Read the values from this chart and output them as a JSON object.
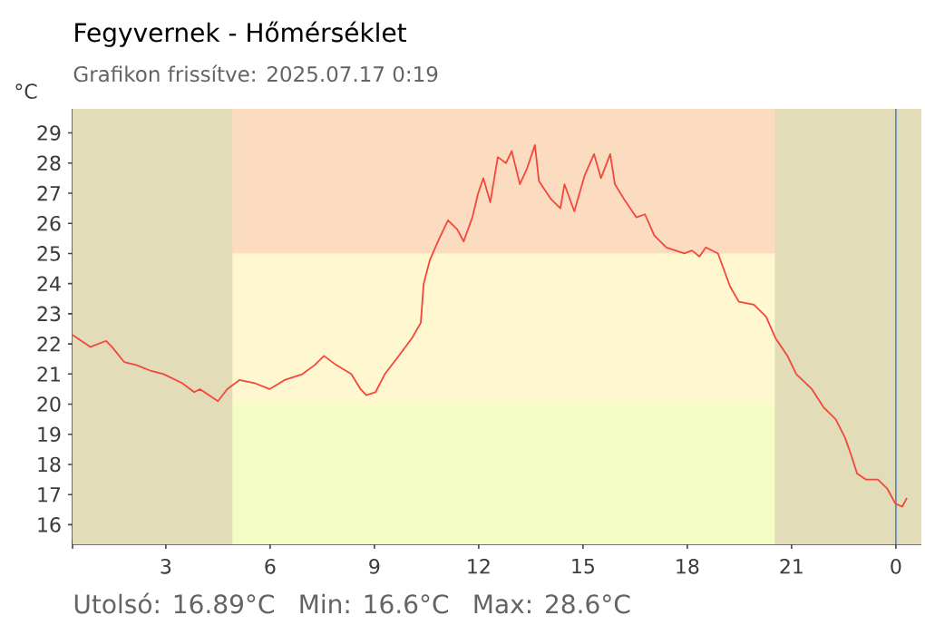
{
  "chart_data": {
    "type": "line",
    "title": "Fegyvernek - Hőmérséklet",
    "subtitle": "Grafikon frissítve: 2025.07.17 0:19",
    "ylabel": "°C",
    "annotations": [
      "Utolsó: 16.89°C",
      "Min: 16.6°C",
      "Max: 28.6°C"
    ],
    "x": [
      "2025-07-16T00:19",
      "2025-07-16T00:50",
      "2025-07-16T01:17",
      "2025-07-16T01:27",
      "2025-07-16T01:48",
      "2025-07-16T02:09",
      "2025-07-16T02:35",
      "2025-07-16T02:56",
      "2025-07-16T03:28",
      "2025-07-16T03:49",
      "2025-07-16T03:59",
      "2025-07-16T04:30",
      "2025-07-16T04:46",
      "2025-07-16T05:07",
      "2025-07-16T05:33",
      "2025-07-16T05:59",
      "2025-07-16T06:25",
      "2025-07-16T06:56",
      "2025-07-16T07:17",
      "2025-07-16T07:33",
      "2025-07-16T07:54",
      "2025-07-16T08:20",
      "2025-07-16T08:36",
      "2025-07-16T08:46",
      "2025-07-16T09:02",
      "2025-07-16T09:18",
      "2025-07-16T09:38",
      "2025-07-16T10:05",
      "2025-07-16T10:20",
      "2025-07-16T10:25",
      "2025-07-16T10:36",
      "2025-07-16T10:52",
      "2025-07-16T11:07",
      "2025-07-16T11:23",
      "2025-07-16T11:34",
      "2025-07-16T11:49",
      "2025-07-16T11:59",
      "2025-07-16T12:08",
      "2025-07-16T12:20",
      "2025-07-16T12:33",
      "2025-07-16T12:47",
      "2025-07-16T12:57",
      "2025-07-16T13:11",
      "2025-07-16T13:23",
      "2025-07-16T13:37",
      "2025-07-16T13:44",
      "2025-07-16T14:05",
      "2025-07-16T14:21",
      "2025-07-16T14:28",
      "2025-07-16T14:45",
      "2025-07-16T15:03",
      "2025-07-16T15:19",
      "2025-07-16T15:31",
      "2025-07-16T15:47",
      "2025-07-16T15:55",
      "2025-07-16T16:11",
      "2025-07-16T16:32",
      "2025-07-16T16:47",
      "2025-07-16T17:03",
      "2025-07-16T17:24",
      "2025-07-16T17:55",
      "2025-07-16T18:08",
      "2025-07-16T18:21",
      "2025-07-16T18:32",
      "2025-07-16T18:53",
      "2025-07-16T19:14",
      "2025-07-16T19:29",
      "2025-07-16T19:55",
      "2025-07-16T20:16",
      "2025-07-16T20:32",
      "2025-07-16T20:53",
      "2025-07-16T21:08",
      "2025-07-16T21:35",
      "2025-07-16T21:55",
      "2025-07-16T22:16",
      "2025-07-16T22:32",
      "2025-07-16T22:43",
      "2025-07-16T22:53",
      "2025-07-16T23:08",
      "2025-07-16T23:29",
      "2025-07-16T23:45",
      "2025-07-16T23:59",
      "2025-07-17T00:11",
      "2025-07-17T00:19"
    ],
    "series": [
      {
        "color": "#f2473a",
        "values": [
          22.3,
          21.9,
          22.1,
          21.9,
          21.4,
          21.3,
          21.1,
          21.0,
          20.7,
          20.4,
          20.5,
          20.1,
          20.5,
          20.8,
          20.7,
          20.5,
          20.8,
          21.0,
          21.3,
          21.6,
          21.3,
          21.0,
          20.5,
          20.3,
          20.4,
          21.0,
          21.5,
          22.2,
          22.7,
          24.0,
          24.8,
          25.5,
          26.1,
          25.8,
          25.4,
          26.2,
          27.0,
          27.5,
          26.7,
          28.2,
          28.0,
          28.4,
          27.3,
          27.8,
          28.6,
          27.4,
          26.8,
          26.5,
          27.3,
          26.4,
          27.6,
          28.3,
          27.5,
          28.3,
          27.3,
          26.8,
          26.2,
          26.3,
          25.6,
          25.2,
          25.0,
          25.1,
          24.9,
          25.2,
          25.0,
          23.9,
          23.4,
          23.3,
          22.9,
          22.2,
          21.6,
          21.0,
          20.5,
          19.9,
          19.5,
          18.9,
          18.3,
          17.7,
          17.5,
          17.5,
          17.2,
          16.7,
          16.6,
          16.89
        ]
      }
    ],
    "xlim": [
      "2025-07-16T00:19",
      "2025-07-17T00:44"
    ],
    "ylim": [
      15.35,
      29.8
    ],
    "xticks": [
      {
        "value": "2025-07-16T00:19",
        "label": null
      },
      {
        "value": "2025-07-16T03:00",
        "label": "3"
      },
      {
        "value": "2025-07-16T06:00",
        "label": "6"
      },
      {
        "value": "2025-07-16T09:00",
        "label": "9"
      },
      {
        "value": "2025-07-16T12:00",
        "label": "12"
      },
      {
        "value": "2025-07-16T15:00",
        "label": "15"
      },
      {
        "value": "2025-07-16T18:00",
        "label": "18"
      },
      {
        "value": "2025-07-16T21:00",
        "label": "21"
      },
      {
        "value": "2025-07-17T00:00",
        "label": "0"
      }
    ],
    "yticks": [
      16,
      17,
      18,
      19,
      20,
      21,
      22,
      23,
      24,
      25,
      26,
      27,
      28,
      29
    ],
    "bands": [
      {
        "axis": "y",
        "from": 15.35,
        "to": 20,
        "color": "#f3fdc3"
      },
      {
        "axis": "y",
        "from": 20,
        "to": 25,
        "color": "#fef7cf"
      },
      {
        "axis": "y",
        "from": 25,
        "to": 29.8,
        "color": "#fbdcc0"
      },
      {
        "axis": "x",
        "from": "2025-07-16T00:19",
        "to": "2025-07-16T04:55",
        "color": "#e2dcb8"
      },
      {
        "axis": "x",
        "from": "2025-07-16T20:31",
        "to": "2025-07-17T00:44",
        "color": "#e2dcb8"
      }
    ],
    "ref_lines": [
      {
        "axis": "x",
        "value": "2025-07-17T00:00",
        "color": "#4a86c0"
      }
    ],
    "grid": false,
    "legend": false,
    "marker": "none",
    "line_style": "solid"
  }
}
